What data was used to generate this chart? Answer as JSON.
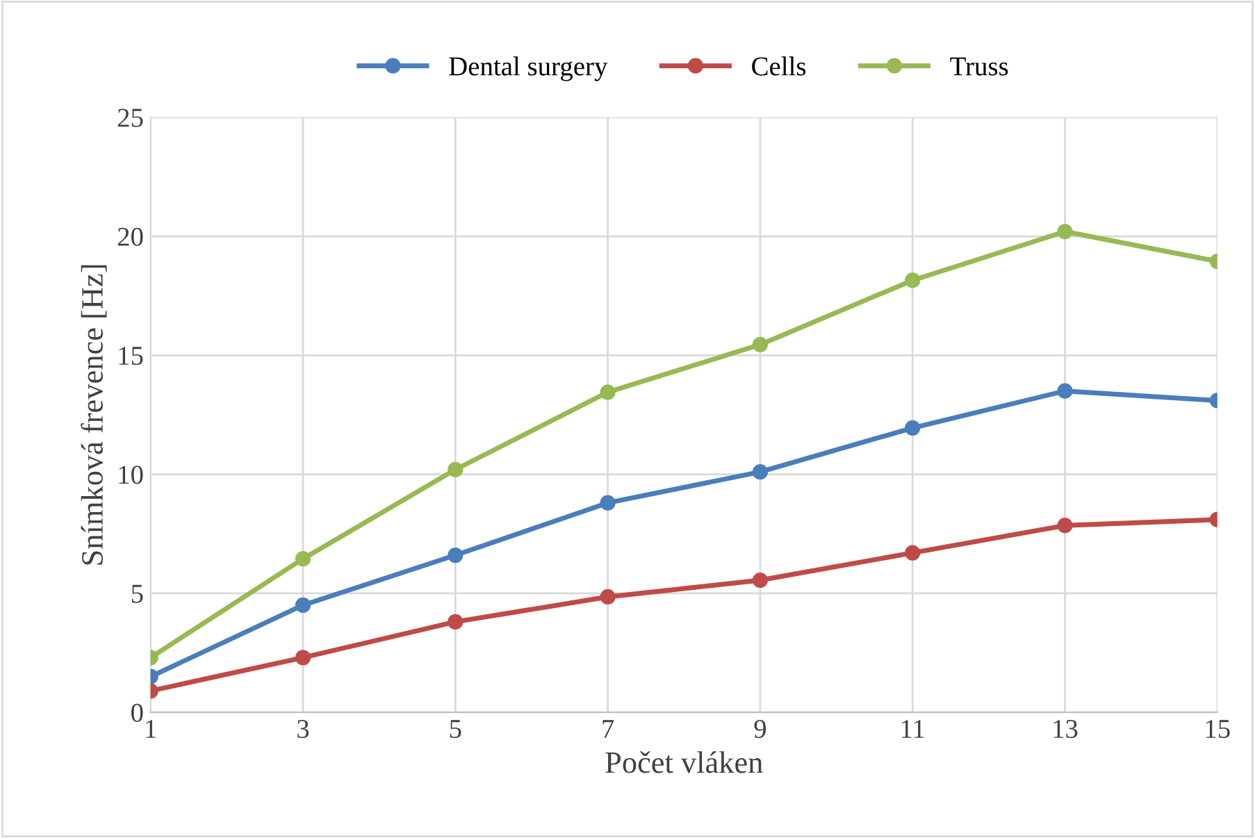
{
  "chart_data": {
    "type": "line",
    "xlabel": "Počet vláken",
    "ylabel": "Snímková frevence [Hz]",
    "x": [
      1,
      3,
      5,
      7,
      9,
      11,
      13,
      15
    ],
    "series": [
      {
        "name": "Dental surgery",
        "color": "#4a7ebb",
        "values": [
          1.5,
          4.5,
          6.6,
          8.8,
          10.1,
          11.95,
          13.5,
          13.1
        ]
      },
      {
        "name": "Cells",
        "color": "#be4b48",
        "values": [
          0.9,
          2.3,
          3.8,
          4.85,
          5.55,
          6.7,
          7.85,
          8.1
        ]
      },
      {
        "name": "Truss",
        "color": "#98b954",
        "values": [
          2.3,
          6.45,
          10.2,
          13.45,
          15.45,
          18.15,
          20.2,
          18.95
        ]
      }
    ],
    "xlim": [
      1,
      15
    ],
    "xticks": [
      1,
      3,
      5,
      7,
      9,
      11,
      13,
      15
    ],
    "ylim": [
      0,
      25
    ],
    "yticks": [
      0,
      5,
      10,
      15,
      20,
      25
    ],
    "grid": true,
    "legend": "top",
    "marker": "circle",
    "line_style": "solid"
  }
}
